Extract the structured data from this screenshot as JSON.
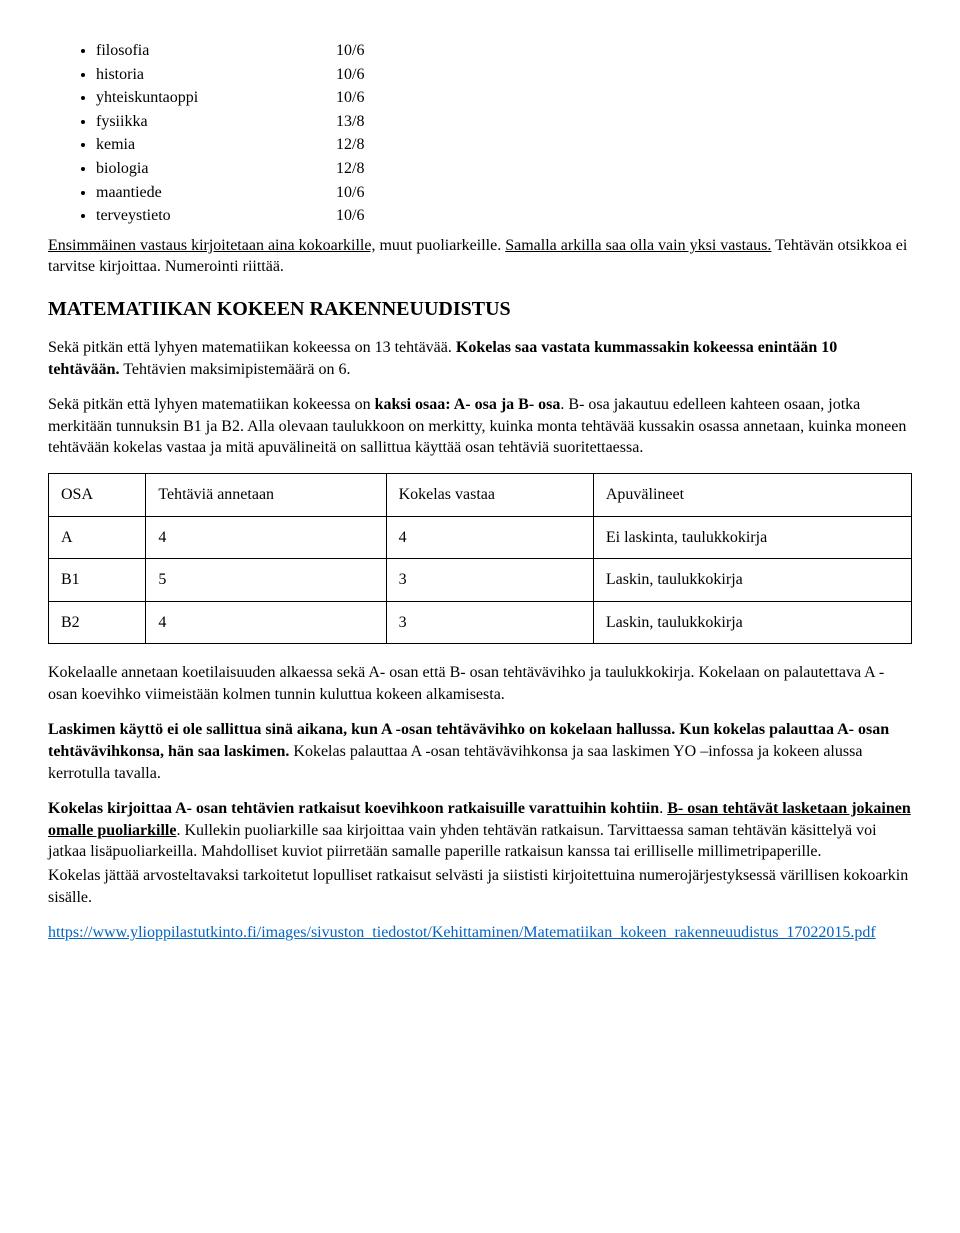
{
  "subjects": [
    {
      "name": "filosofia",
      "value": "10/6"
    },
    {
      "name": "historia",
      "value": "10/6"
    },
    {
      "name": "yhteiskuntaoppi",
      "value": "10/6"
    },
    {
      "name": "fysiikka",
      "value": "13/8"
    },
    {
      "name": "kemia",
      "value": "12/8"
    },
    {
      "name": "biologia",
      "value": "12/8"
    },
    {
      "name": "maantiede",
      "value": "10/6"
    },
    {
      "name": "terveystieto",
      "value": "10/6"
    }
  ],
  "intro": {
    "line1_u": "Ensimmäinen vastaus kirjoitetaan aina kokoarkille,",
    "line1_rest": " muut puoliarkeille. ",
    "line2_u": "Samalla arkilla saa olla vain yksi vastaus.",
    "line2_rest": " Tehtävän otsikkoa ei tarvitse kirjoittaa. Numerointi riittää."
  },
  "section_heading": "MATEMATIIKAN KOKEEN RAKENNEUUDISTUS",
  "para1": {
    "a": "Sekä pitkän että lyhyen matematiikan kokeessa on 13 tehtävää. ",
    "b_bold": "Kokelas saa vastata kummassakin kokeessa enintään 10 tehtävään.",
    "c": " Tehtävien maksimipistemäärä on 6."
  },
  "para2": {
    "a": "Sekä pitkän että lyhyen matematiikan kokeessa on ",
    "b_bold": "kaksi osaa: A- osa ja B- osa",
    "c": ". B- osa jakautuu edelleen kahteen osaan, jotka merkitään tunnuksin B1 ja B2. Alla olevaan taulukkoon on merkitty, kuinka monta tehtävää kussakin osassa annetaan, kuinka moneen tehtävään kokelas vastaa ja mitä apuvälineitä on sallittua käyttää osan tehtäviä suoritettaessa."
  },
  "table": {
    "headers": [
      "OSA",
      "Tehtäviä annetaan",
      "Kokelas vastaa",
      "Apuvälineet"
    ],
    "rows": [
      [
        "A",
        "4",
        "4",
        "Ei laskinta, taulukkokirja"
      ],
      [
        "B1",
        "5",
        "3",
        "Laskin, taulukkokirja"
      ],
      [
        "B2",
        "4",
        "3",
        "Laskin, taulukkokirja"
      ]
    ]
  },
  "para3": "Kokelaalle annetaan koetilaisuuden alkaessa sekä A- osan että B- osan tehtävävihko ja taulukkokirja. Kokelaan on palautettava A -osan koevihko viimeistään kolmen tunnin kuluttua kokeen alkamisesta.",
  "para4": {
    "bold": "Laskimen käyttö ei ole sallittua sinä aikana, kun A -osan tehtävävihko on kokelaan hallussa. Kun kokelas palauttaa A- osan tehtävävihkonsa, hän saa laskimen.",
    "rest": " Kokelas palauttaa A -osan tehtävävihkonsa ja saa laskimen YO –infossa ja kokeen alussa kerrotulla tavalla."
  },
  "para5": {
    "bold1": "Kokelas kirjoittaa A- osan tehtävien ratkaisut koevihkoon ratkaisuille varattuihin kohtiin",
    "after_bold1": ". ",
    "bold2_u": "B- osan tehtävät lasketaan jokainen omalle puoliarkille",
    "after_bold2": ". Kullekin puoliarkille saa kirjoittaa vain yhden tehtävän ratkaisun. Tarvittaessa saman tehtävän käsittelyä voi jatkaa lisäpuoliarkeilla. Mahdolliset kuviot piirretään samalle paperille ratkaisun kanssa tai erilliselle millimetripaperille.",
    "tail": "Kokelas jättää arvosteltavaksi tarkoitetut lopulliset ratkaisut selvästi ja siististi kirjoitettuina numerojärjestyksessä värillisen kokoarkin sisälle."
  },
  "link": {
    "href": "https://www.ylioppilastutkinto.fi/images/sivuston_tiedostot/Kehittaminen/Matematiikan_kokeen_rakenneuudistus_17022015.pdf",
    "text": "https://www.ylioppilastutkinto.fi/images/sivuston_tiedostot/Kehittaminen/Matematiikan_kokeen_rakenneuudistus_17022015.pdf"
  }
}
